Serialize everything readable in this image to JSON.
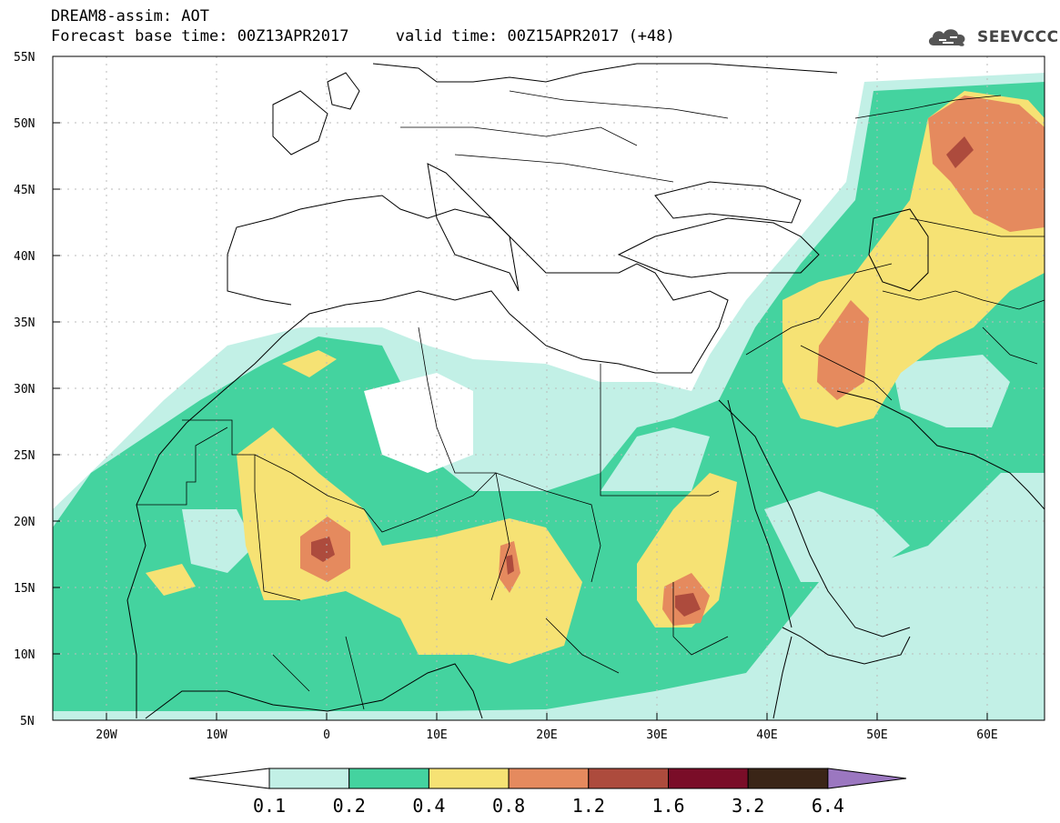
{
  "header": {
    "title": "DREAM8-assim: AOT",
    "forecast_base": "Forecast base time: 00Z13APR2017",
    "valid_time": "valid time: 00Z15APR2017 (+48)"
  },
  "logo": {
    "text": "SEEVCCC",
    "icon": "cloud-icon"
  },
  "map": {
    "lon_range": [
      -25,
      65
    ],
    "lat_range": [
      5,
      55
    ],
    "lat_ticks": [
      "5N",
      "10N",
      "15N",
      "20N",
      "25N",
      "30N",
      "35N",
      "40N",
      "45N",
      "50N",
      "55N"
    ],
    "lon_ticks": [
      "20W",
      "10W",
      "0",
      "10E",
      "20E",
      "30E",
      "40E",
      "50E",
      "60E"
    ],
    "grid": "dotted"
  },
  "colorbar": {
    "levels": [
      "0.1",
      "0.2",
      "0.4",
      "0.8",
      "1.2",
      "1.6",
      "3.2",
      "6.4"
    ],
    "colors": [
      "#c2f0e6",
      "#44d39f",
      "#f6e274",
      "#e58a5e",
      "#ad4b3d",
      "#7a0d28",
      "#3a2517",
      "#9b77c0"
    ],
    "under_color": "#ffffff",
    "over_color": "#9b77c0"
  }
}
